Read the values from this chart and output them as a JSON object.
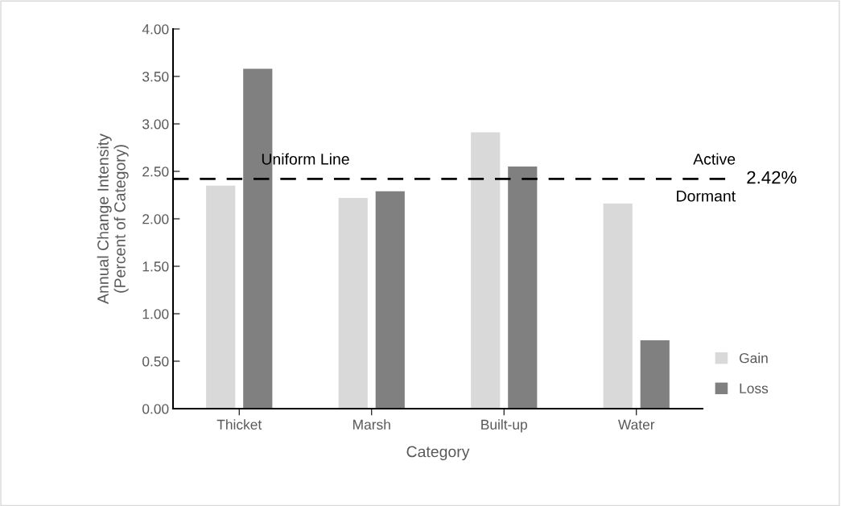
{
  "chart_data": {
    "type": "bar",
    "xlabel": "Category",
    "ylabel": "Annual Change Intensity\n(Percent of Category)",
    "categories": [
      "Thicket",
      "Marsh",
      "Built-up",
      "Water"
    ],
    "series": [
      {
        "name": "Gain",
        "color": "#d9d9d9",
        "values": [
          2.35,
          2.22,
          2.91,
          2.16
        ]
      },
      {
        "name": "Loss",
        "color": "#808080",
        "values": [
          3.58,
          2.29,
          2.55,
          0.72
        ]
      }
    ],
    "ylim": [
      0,
      4
    ],
    "yticks": [
      {
        "value": 0,
        "label": "0.00"
      },
      {
        "value": 0.5,
        "label": "0.50"
      },
      {
        "value": 1,
        "label": "1.00"
      },
      {
        "value": 1.5,
        "label": "1.50"
      },
      {
        "value": 2,
        "label": "2.00"
      },
      {
        "value": 2.5,
        "label": "2.50"
      },
      {
        "value": 3,
        "label": "3.00"
      },
      {
        "value": 3.5,
        "label": "3.50"
      },
      {
        "value": 4,
        "label": "4.00"
      }
    ],
    "ref_lines": [
      {
        "axis": "y",
        "value": 2.42,
        "label": "2.42%",
        "color": "#000000",
        "line_style": "dashed"
      }
    ],
    "annotations": [
      {
        "text": "Uniform Line",
        "y": 2.42
      },
      {
        "text": "Active",
        "y": 2.42
      },
      {
        "text": "Dormant",
        "y": 2.42
      }
    ],
    "grid": false,
    "legend": "bottom right"
  }
}
